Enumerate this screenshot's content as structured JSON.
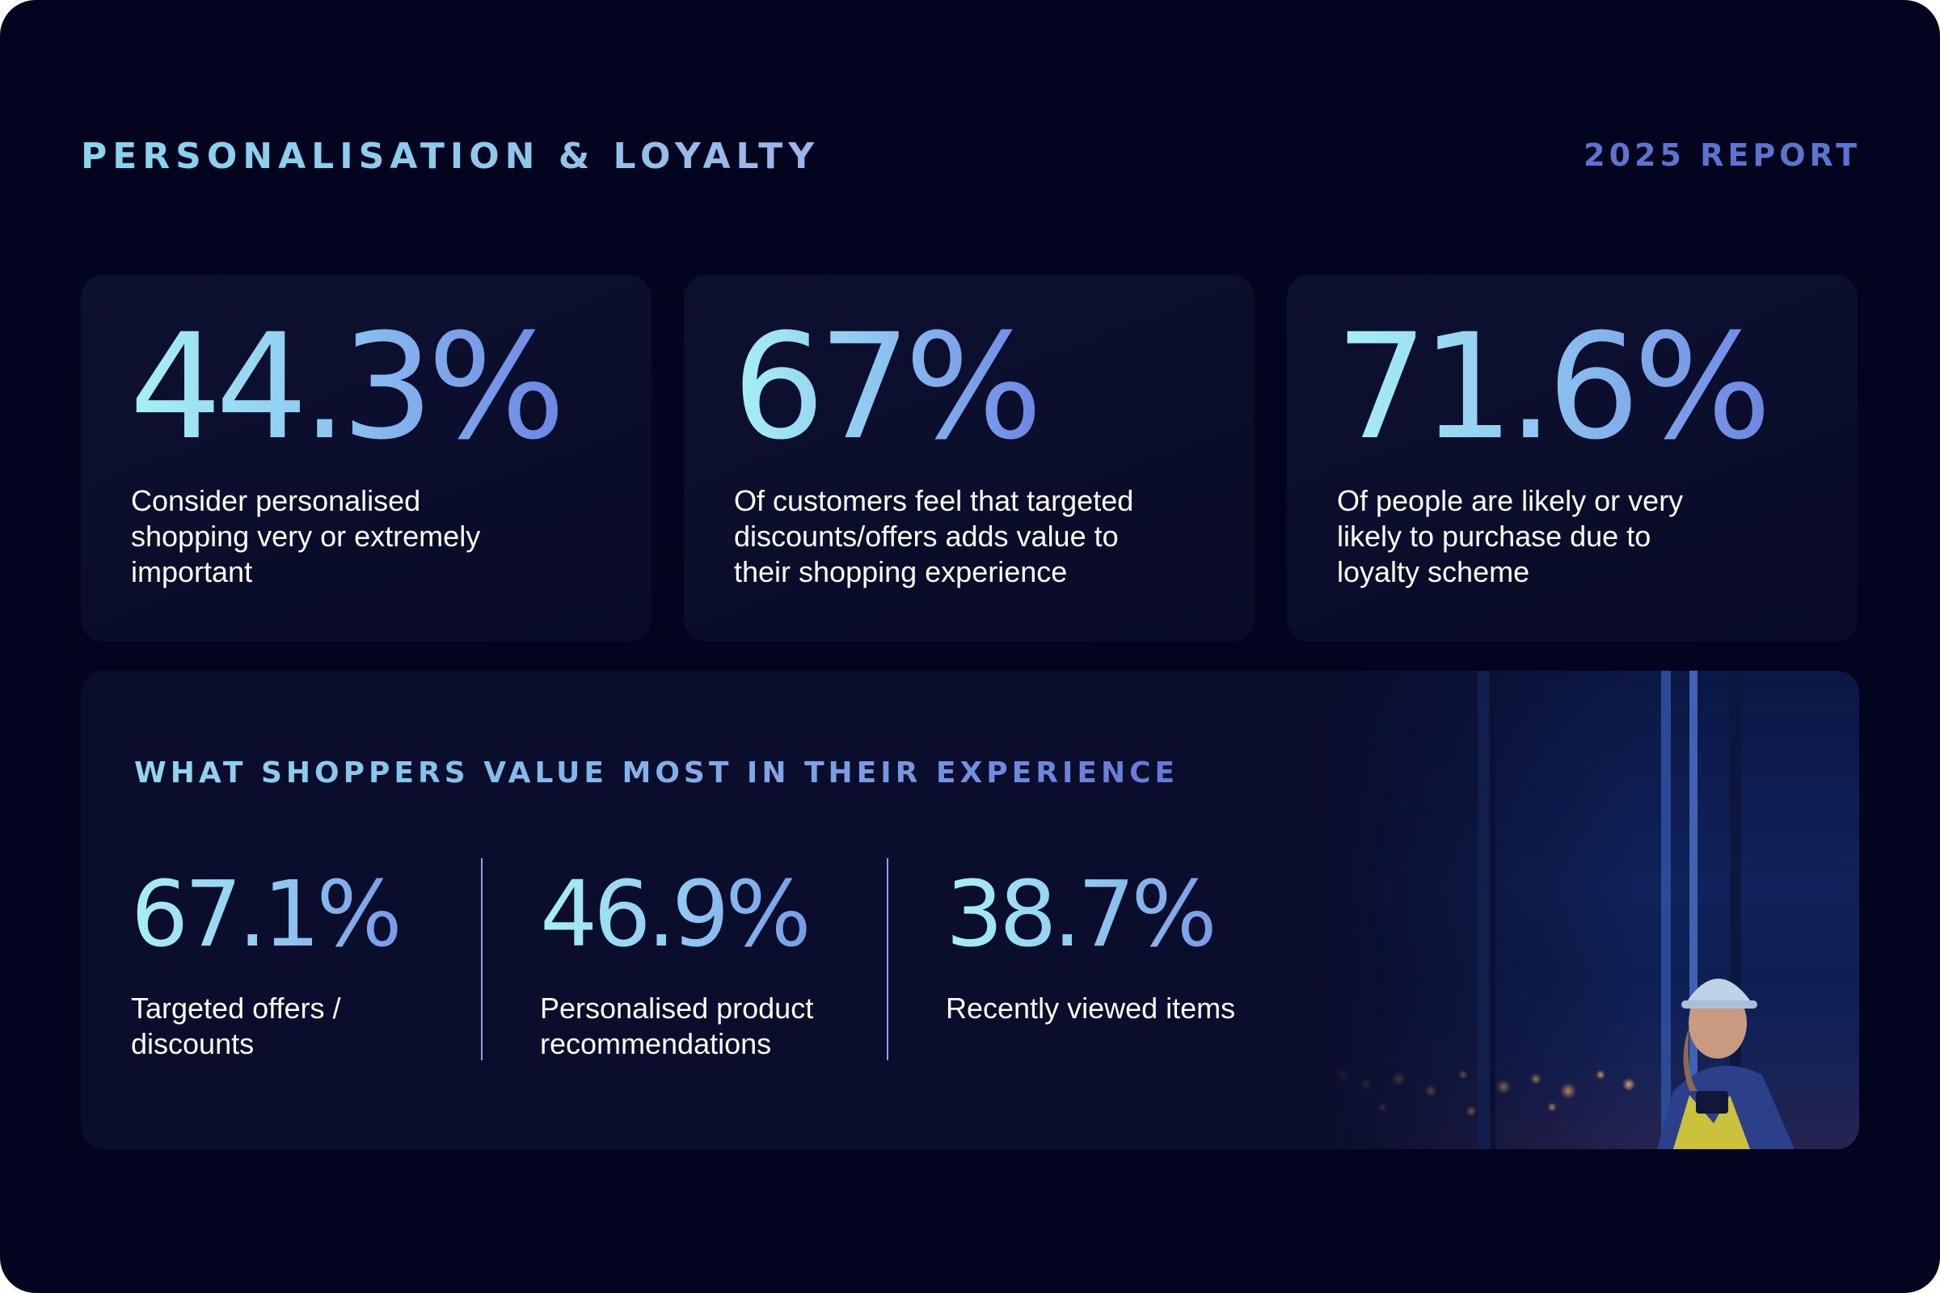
{
  "header": {
    "title": "PERSONALISATION & LOYALTY",
    "year_label": "2025 REPORT"
  },
  "cards": [
    {
      "value": "44.3%",
      "description": "Consider personalised shopping very or extremely important"
    },
    {
      "value": "67%",
      "description": "Of customers feel that targeted discounts/offers adds value to their shopping experience"
    },
    {
      "value": "71.6%",
      "description": "Of people are likely or very likely to purchase due to loyalty scheme"
    }
  ],
  "panel": {
    "title": "WHAT SHOPPERS VALUE MOST IN THEIR EXPERIENCE",
    "stats": [
      {
        "value": "67.1%",
        "description": "Targeted offers / discounts"
      },
      {
        "value": "46.9%",
        "description": "Personalised product recommendations"
      },
      {
        "value": "38.7%",
        "description": "Recently viewed items"
      }
    ]
  },
  "colors": {
    "background": "#03051f",
    "card": "#0a0d2b",
    "accent_cyan": "#a6f1f4",
    "accent_blue": "#6d86e4",
    "year_label": "#5b74cf"
  }
}
